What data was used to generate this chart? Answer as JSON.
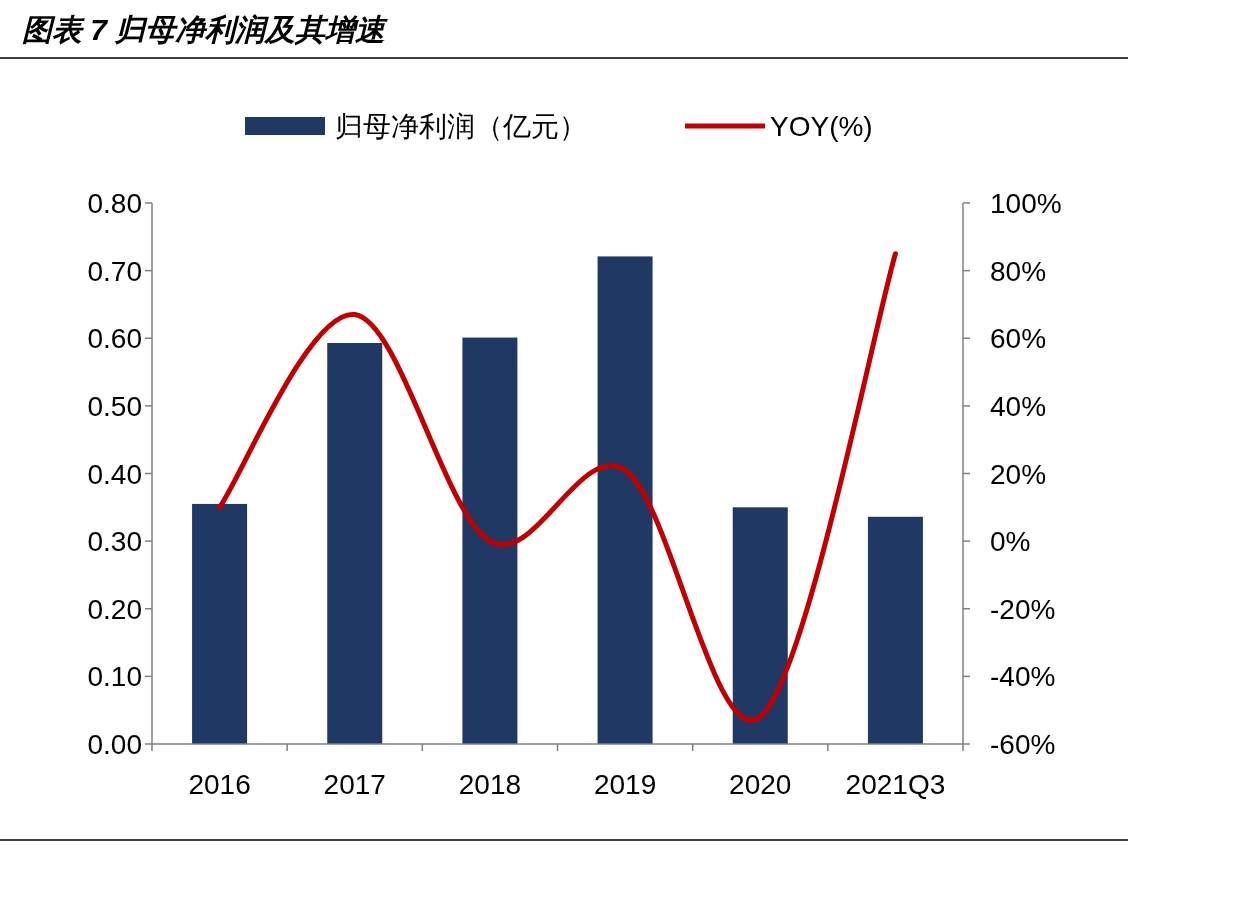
{
  "chart_data": {
    "type": "bar",
    "title": "图表 7  归母净利润及其增速",
    "categories": [
      "2016",
      "2017",
      "2018",
      "2019",
      "2020",
      "2021Q3"
    ],
    "series": [
      {
        "name": "归母净利润（亿元）",
        "color": "#203864",
        "values": [
          0.355,
          0.593,
          0.601,
          0.721,
          0.35,
          0.336
        ]
      },
      {
        "name": "YOY(%)",
        "type": "line",
        "axis": "y2",
        "color": "#c00000",
        "values": [
          10,
          67,
          0,
          21,
          -52,
          85
        ]
      }
    ],
    "ylim": [
      0,
      0.8
    ],
    "yticks": [
      {
        "value": 0,
        "label": "0.00"
      },
      {
        "value": 0.1,
        "label": "0.10"
      },
      {
        "value": 0.2,
        "label": "0.20"
      },
      {
        "value": 0.3,
        "label": "0.30"
      },
      {
        "value": 0.4,
        "label": "0.40"
      },
      {
        "value": 0.5,
        "label": "0.50"
      },
      {
        "value": 0.6,
        "label": "0.60"
      },
      {
        "value": 0.7,
        "label": "0.70"
      },
      {
        "value": 0.8,
        "label": "0.80"
      }
    ],
    "y2lim": [
      -60,
      100
    ],
    "y2ticks": [
      {
        "value": -60,
        "label": "-60%"
      },
      {
        "value": -40,
        "label": "-40%"
      },
      {
        "value": -20,
        "label": "-20%"
      },
      {
        "value": 0,
        "label": "0%"
      },
      {
        "value": 20,
        "label": "20%"
      },
      {
        "value": 40,
        "label": "40%"
      },
      {
        "value": 60,
        "label": "60%"
      },
      {
        "value": 80,
        "label": "80%"
      },
      {
        "value": 100,
        "label": "100%"
      }
    ],
    "legend": "top",
    "grid": false,
    "marker": "none",
    "line_style": "solid"
  }
}
